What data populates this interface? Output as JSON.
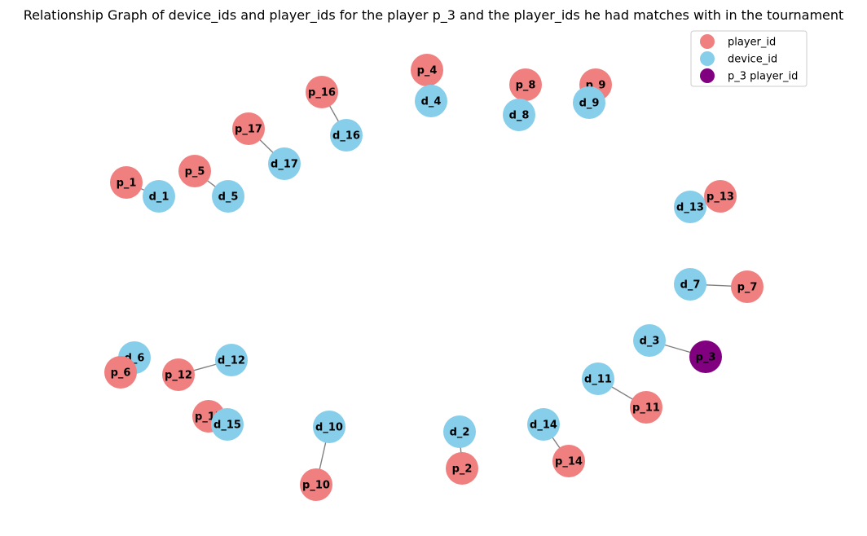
{
  "title": "Relationship Graph of device_ids and player_ids for the player p_3 and the player_ids he had matches with in the tournament",
  "colors": {
    "player": "#f08080",
    "device": "#87ceeb",
    "focus": "#800080"
  },
  "legend": [
    {
      "label": "player_id",
      "kind": "player"
    },
    {
      "label": "device_id",
      "kind": "device"
    },
    {
      "label": "p_3 player_id",
      "kind": "focus"
    }
  ],
  "nodes": [
    {
      "id": "p_4",
      "kind": "player"
    },
    {
      "id": "d_4",
      "kind": "device"
    },
    {
      "id": "p_8",
      "kind": "player"
    },
    {
      "id": "d_8",
      "kind": "device"
    },
    {
      "id": "p_9",
      "kind": "player"
    },
    {
      "id": "d_9",
      "kind": "device"
    },
    {
      "id": "p_16",
      "kind": "player"
    },
    {
      "id": "d_16",
      "kind": "device"
    },
    {
      "id": "p_17",
      "kind": "player"
    },
    {
      "id": "d_17",
      "kind": "device"
    },
    {
      "id": "p_5",
      "kind": "player"
    },
    {
      "id": "d_5",
      "kind": "device"
    },
    {
      "id": "p_1",
      "kind": "player"
    },
    {
      "id": "d_1",
      "kind": "device"
    },
    {
      "id": "d_13",
      "kind": "device"
    },
    {
      "id": "p_13",
      "kind": "player"
    },
    {
      "id": "d_7",
      "kind": "device"
    },
    {
      "id": "p_7",
      "kind": "player"
    },
    {
      "id": "d_3",
      "kind": "device"
    },
    {
      "id": "p_3",
      "kind": "focus"
    },
    {
      "id": "d_11",
      "kind": "device"
    },
    {
      "id": "p_11",
      "kind": "player"
    },
    {
      "id": "d_14",
      "kind": "device"
    },
    {
      "id": "p_14",
      "kind": "player"
    },
    {
      "id": "d_2",
      "kind": "device"
    },
    {
      "id": "p_2",
      "kind": "player"
    },
    {
      "id": "d_10",
      "kind": "device"
    },
    {
      "id": "p_10",
      "kind": "player"
    },
    {
      "id": "d_12",
      "kind": "device"
    },
    {
      "id": "p_12",
      "kind": "player"
    },
    {
      "id": "d_6",
      "kind": "device"
    },
    {
      "id": "p_6",
      "kind": "player"
    },
    {
      "id": "p_15",
      "kind": "player"
    },
    {
      "id": "d_15",
      "kind": "device"
    }
  ],
  "edges": [
    [
      "p_4",
      "d_4"
    ],
    [
      "p_8",
      "d_8"
    ],
    [
      "p_9",
      "d_9"
    ],
    [
      "p_16",
      "d_16"
    ],
    [
      "p_17",
      "d_17"
    ],
    [
      "p_5",
      "d_5"
    ],
    [
      "p_1",
      "d_1"
    ],
    [
      "p_13",
      "d_13"
    ],
    [
      "p_7",
      "d_7"
    ],
    [
      "p_3",
      "d_3"
    ],
    [
      "p_11",
      "d_11"
    ],
    [
      "p_14",
      "d_14"
    ],
    [
      "p_2",
      "d_2"
    ],
    [
      "p_10",
      "d_10"
    ],
    [
      "p_12",
      "d_12"
    ],
    [
      "p_6",
      "d_6"
    ],
    [
      "p_15",
      "d_15"
    ]
  ]
}
